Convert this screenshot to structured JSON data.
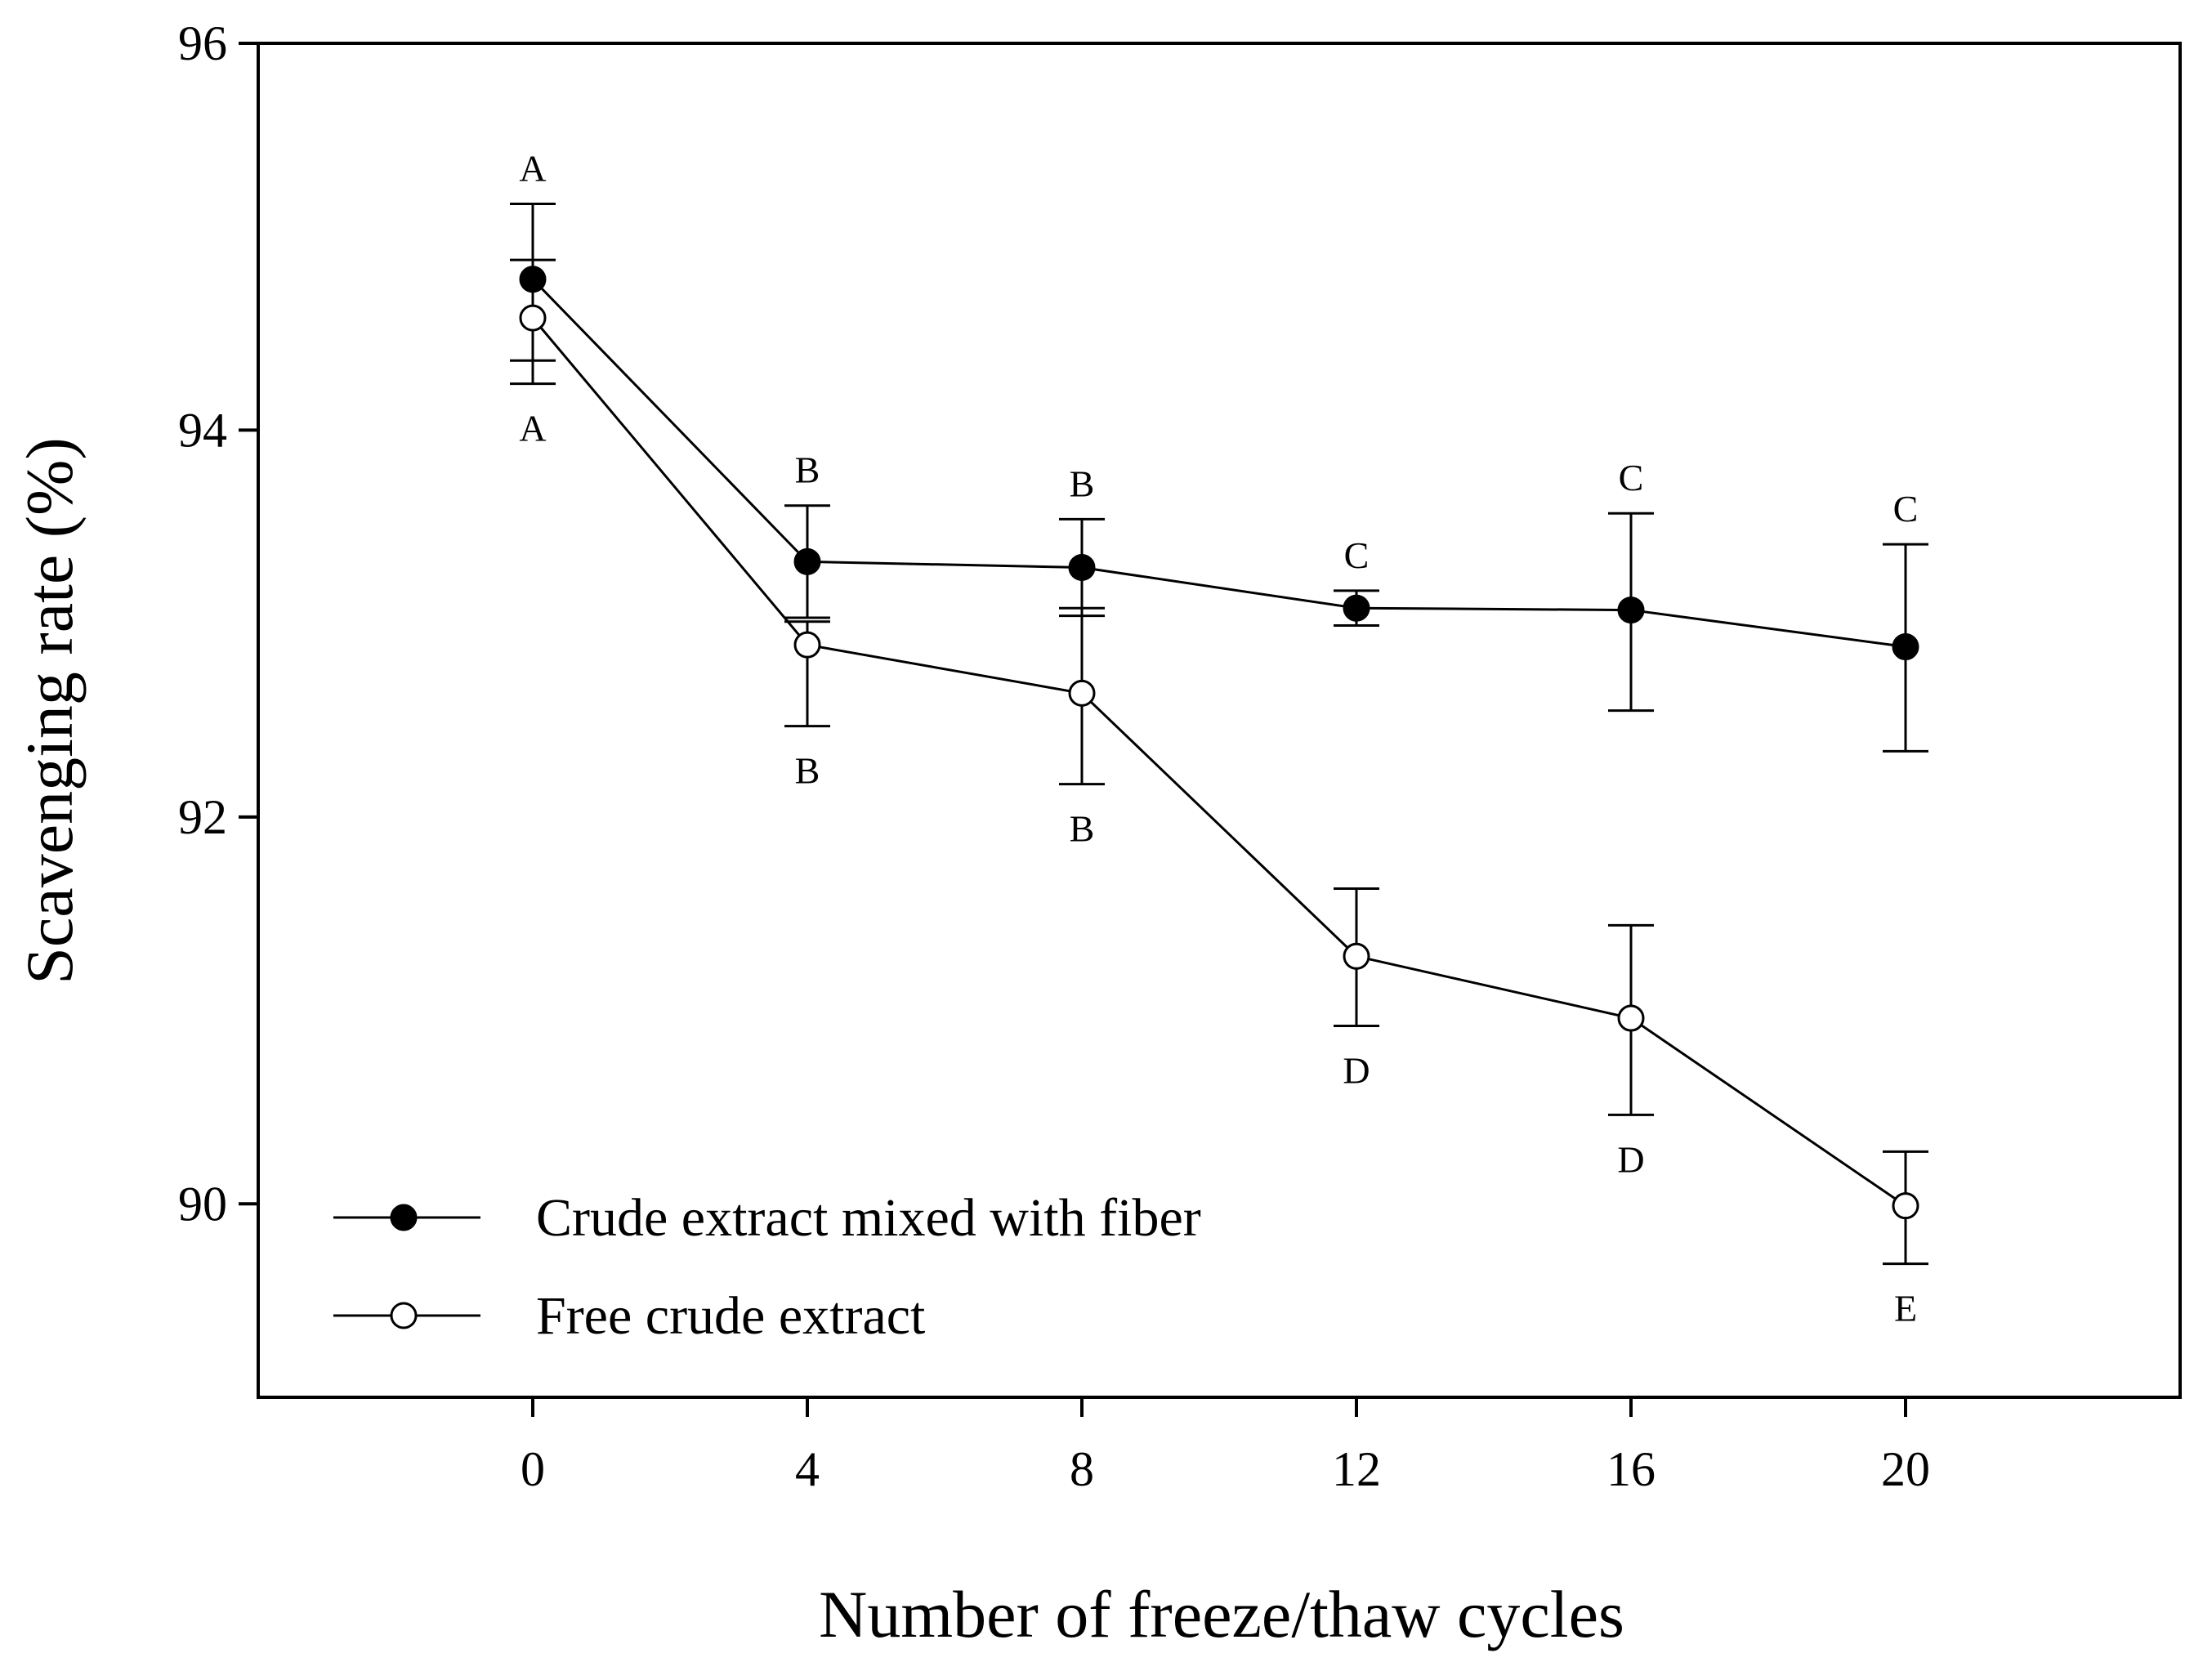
{
  "chart_data": {
    "type": "line",
    "title": "",
    "xlabel": "Number of freeze/thaw cycles",
    "ylabel": "Scavenging rate (%)",
    "x": [
      0,
      4,
      8,
      12,
      16,
      20
    ],
    "xlim": [
      -4,
      24
    ],
    "ylim": [
      89,
      96
    ],
    "xticks": [
      0,
      4,
      8,
      12,
      16,
      20
    ],
    "yticks": [
      90,
      92,
      94,
      96
    ],
    "grid": false,
    "legend_position": "bottom-left",
    "series": [
      {
        "name": "Crude extract mixed with fiber",
        "marker": "filled-circle",
        "color": "#000000",
        "values": [
          94.78,
          93.32,
          93.29,
          93.08,
          93.07,
          92.88
        ],
        "error_upper": [
          95.17,
          93.61,
          93.54,
          93.17,
          93.57,
          93.41
        ],
        "error_lower": [
          94.36,
          93.03,
          93.04,
          92.99,
          92.55,
          92.34
        ],
        "labels": [
          "A",
          "B",
          "B",
          "C",
          "C",
          "C"
        ],
        "label_position": "above"
      },
      {
        "name": "Free crude extract",
        "marker": "open-circle",
        "color": "#000000",
        "values": [
          94.58,
          92.89,
          92.64,
          91.28,
          90.96,
          89.99
        ],
        "error_upper": [
          94.88,
          93.01,
          93.08,
          91.63,
          91.44,
          90.27
        ],
        "error_lower": [
          94.24,
          92.47,
          92.17,
          90.92,
          90.46,
          89.69
        ],
        "labels": [
          "A",
          "B",
          "B",
          "D",
          "D",
          "E"
        ],
        "label_position": "below"
      }
    ]
  }
}
